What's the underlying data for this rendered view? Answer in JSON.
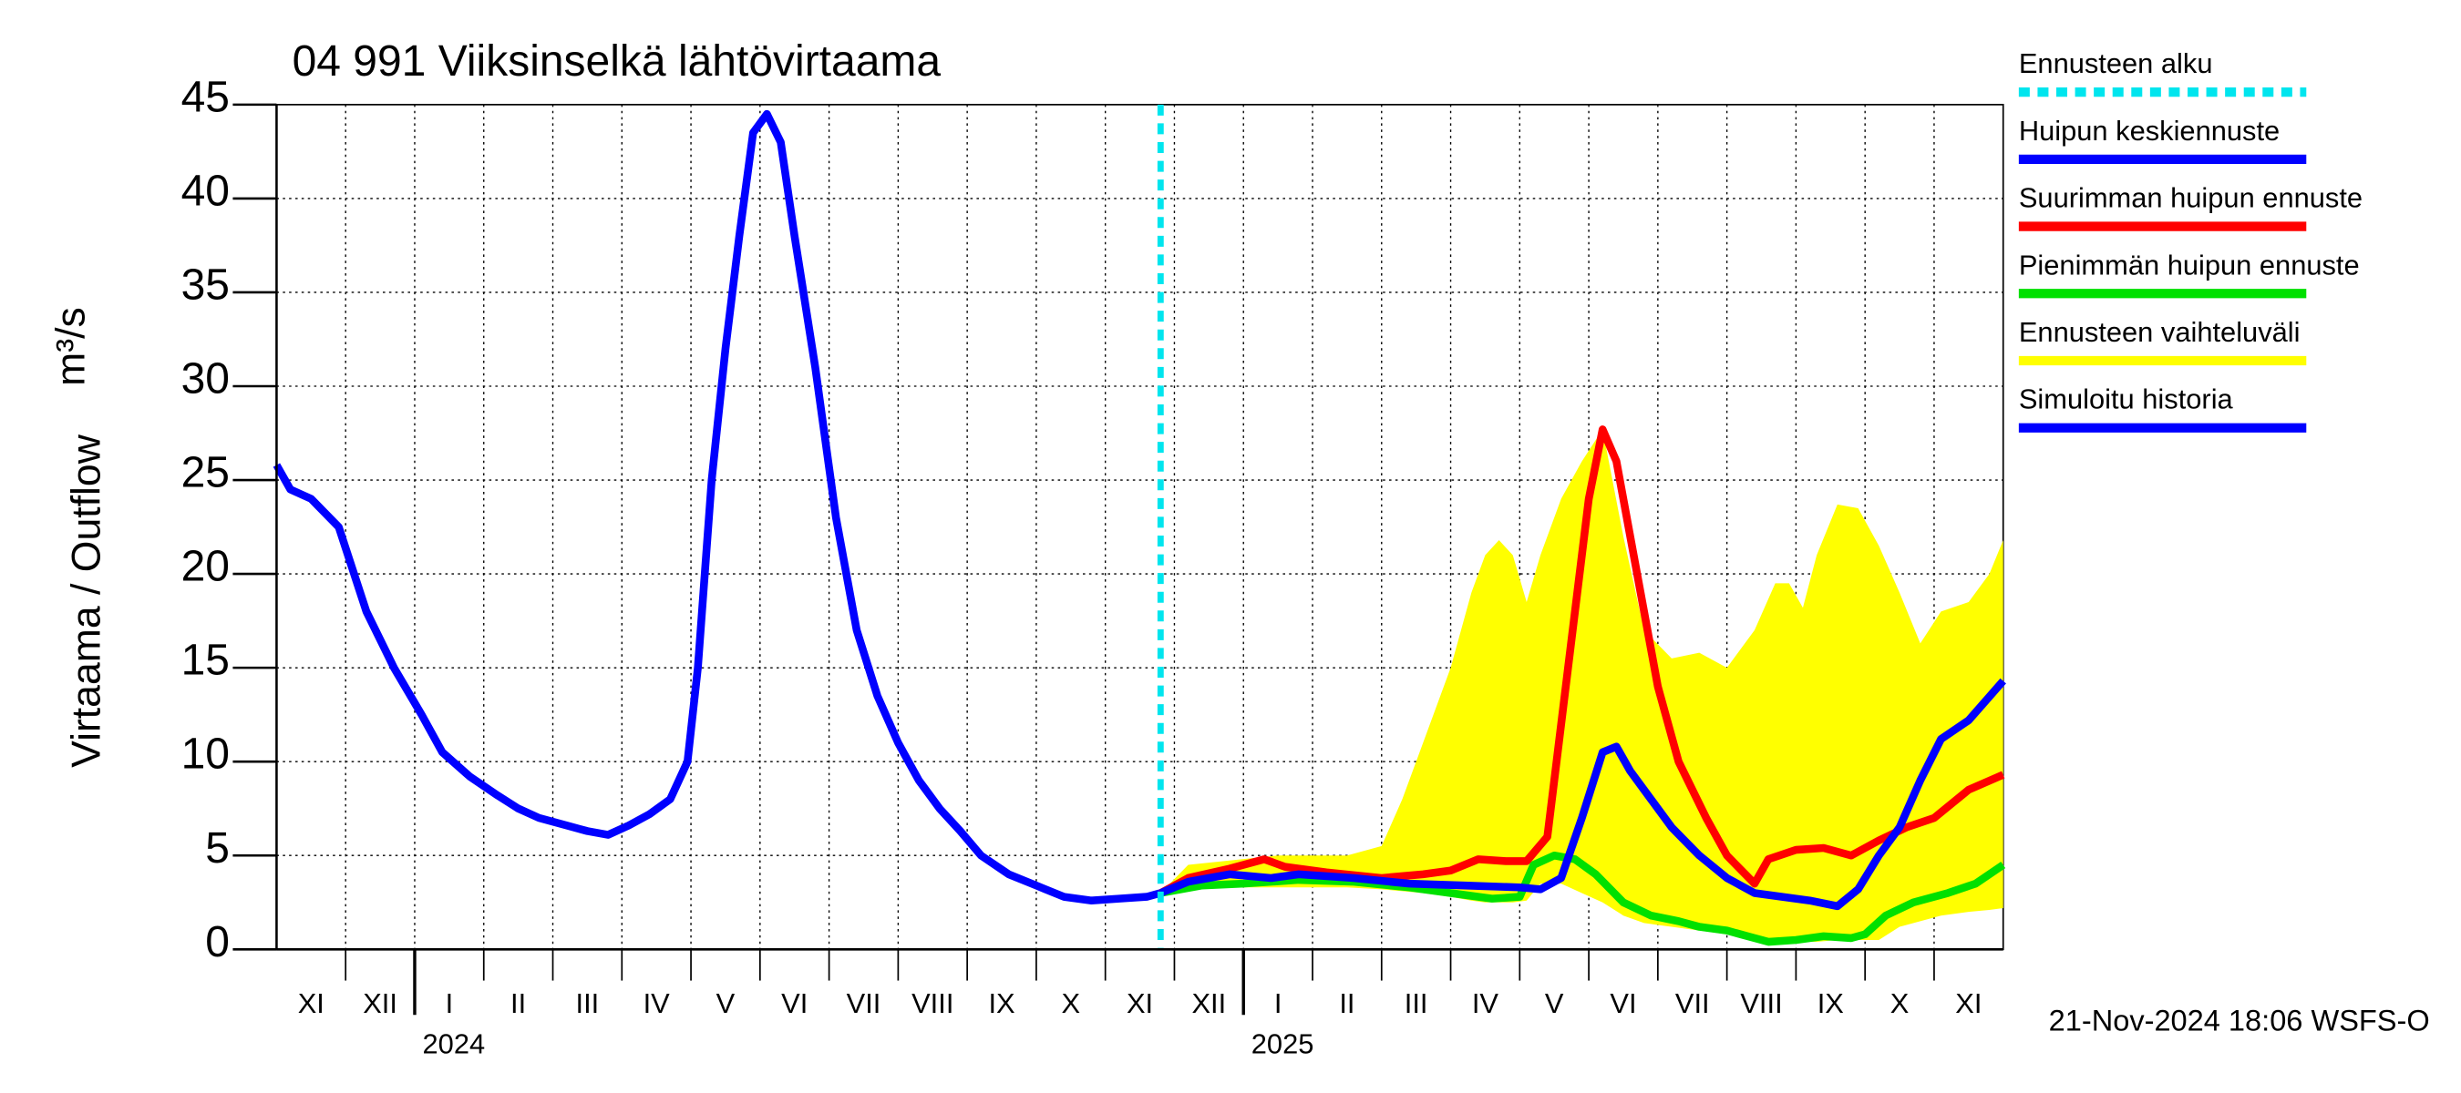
{
  "chart_data": {
    "type": "line",
    "title": "04 991 Viiksinselkä lähtövirtaama",
    "y_label": "Virtaama / Outflow",
    "y_unit": "m³/s",
    "footer": "21-Nov-2024 18:06 WSFS-O",
    "xlim": [
      0,
      25
    ],
    "xticks": [
      1,
      2,
      3,
      4,
      5,
      6,
      7,
      8,
      9,
      10,
      11,
      12,
      13,
      14,
      15,
      16,
      17,
      18,
      19,
      20,
      21,
      22,
      23,
      24
    ],
    "month_labels": [
      "XI",
      "XII",
      "I",
      "II",
      "III",
      "IV",
      "V",
      "VI",
      "VII",
      "VIII",
      "IX",
      "X",
      "XI",
      "XII",
      "I",
      "II",
      "III",
      "IV",
      "V",
      "VI",
      "VII",
      "VIII",
      "IX",
      "X",
      "XI"
    ],
    "year_labels": [
      {
        "value": 2,
        "label": "2024"
      },
      {
        "value": 14,
        "label": "2025"
      }
    ],
    "ylim": [
      0,
      45
    ],
    "yticks": [
      0,
      5,
      10,
      15,
      20,
      25,
      30,
      35,
      40,
      45
    ],
    "grid": true,
    "forecast_start": {
      "name": "Ennusteen alku",
      "x": 12.8,
      "color": "#00e5ee"
    },
    "band": {
      "name": "Ennusteen vaihteluväli",
      "color": "#ffff00",
      "x": [
        12.8,
        13.2,
        14.5,
        15.5,
        16,
        16.3,
        16.6,
        17,
        17.3,
        17.5,
        17.7,
        17.9,
        18.1,
        18.3,
        18.6,
        18.9,
        19.2,
        19.5,
        19.8,
        20.2,
        20.6,
        21,
        21.4,
        21.7,
        21.9,
        22.1,
        22.3,
        22.6,
        22.9,
        23.2,
        23.5,
        23.8,
        24.1,
        24.5,
        24.8,
        25
      ],
      "upper": [
        3,
        4.5,
        5,
        5,
        5.5,
        8,
        11,
        15,
        19,
        21,
        21.8,
        21,
        18.5,
        21,
        24,
        26,
        27.7,
        22,
        17,
        15.5,
        15.8,
        15,
        17,
        19.5,
        19.5,
        18.2,
        21,
        23.7,
        23.5,
        21.5,
        19,
        16.3,
        18,
        18.5,
        20,
        21.8
      ],
      "lower": [
        3,
        3.3,
        3.3,
        3.3,
        3.2,
        3.1,
        3,
        2.8,
        2.6,
        2.5,
        2.5,
        2.5,
        2.6,
        3.5,
        3.5,
        3,
        2.5,
        1.8,
        1.4,
        1.2,
        1,
        0.8,
        0.5,
        0.4,
        0.4,
        0.4,
        0.4,
        0.5,
        0.5,
        0.5,
        1.2,
        1.5,
        1.8,
        2,
        2.1,
        2.2
      ]
    },
    "series": [
      {
        "name": "Huipun keskiennuste",
        "color": "#0000ff",
        "x": [
          12.8,
          13.2,
          13.8,
          14.4,
          14.8,
          15.6,
          16.4,
          17.2,
          18,
          18.3,
          18.6,
          18.9,
          19.2,
          19.4,
          19.6,
          19.9,
          20.2,
          20.6,
          21,
          21.4,
          21.8,
          22.2,
          22.6,
          22.9,
          23.2,
          23.5,
          23.8,
          24.1,
          24.5,
          25
        ],
        "values": [
          3,
          3.6,
          4,
          3.8,
          4,
          3.8,
          3.5,
          3.4,
          3.3,
          3.2,
          3.8,
          7,
          10.5,
          10.8,
          9.5,
          8,
          6.5,
          5,
          3.8,
          3,
          2.8,
          2.6,
          2.3,
          3.2,
          5,
          6.5,
          9,
          11.2,
          12.2,
          14.3
        ]
      },
      {
        "name": "Suurimman huipun ennuste",
        "color": "#ff0000",
        "x": [
          12.8,
          13.2,
          13.8,
          14.3,
          14.6,
          15.2,
          16,
          16.6,
          17,
          17.4,
          17.8,
          18.1,
          18.4,
          18.7,
          19,
          19.2,
          19.4,
          19.7,
          20,
          20.3,
          20.7,
          21,
          21.4,
          21.6,
          22,
          22.4,
          22.8,
          23.2,
          23.6,
          24,
          24.5,
          25
        ],
        "values": [
          3,
          3.8,
          4.3,
          4.8,
          4.4,
          4.1,
          3.8,
          4,
          4.2,
          4.8,
          4.7,
          4.7,
          6,
          15,
          24,
          27.7,
          26,
          20,
          14,
          10,
          7,
          5,
          3.5,
          4.8,
          5.3,
          5.4,
          5,
          5.8,
          6.5,
          7,
          8.5,
          9.3
        ]
      },
      {
        "name": "Pienimmän huipun ennuste",
        "color": "#00e000",
        "x": [
          12.8,
          13.4,
          14,
          14.8,
          15.6,
          16.4,
          17,
          17.6,
          18,
          18.2,
          18.5,
          18.8,
          19.1,
          19.5,
          19.9,
          20.3,
          20.6,
          21,
          21.3,
          21.6,
          22,
          22.4,
          22.8,
          23,
          23.3,
          23.7,
          24.2,
          24.6,
          25
        ],
        "values": [
          3,
          3.4,
          3.5,
          3.7,
          3.6,
          3.3,
          3,
          2.7,
          2.8,
          4.5,
          5,
          4.8,
          4,
          2.5,
          1.8,
          1.5,
          1.2,
          1,
          0.7,
          0.4,
          0.5,
          0.7,
          0.6,
          0.8,
          1.8,
          2.5,
          3,
          3.5,
          4.5
        ]
      },
      {
        "name": "Simuloitu historia",
        "color": "#0000ff",
        "x": [
          0,
          0.2,
          0.5,
          0.9,
          1.3,
          1.7,
          2.1,
          2.4,
          2.8,
          3.2,
          3.5,
          3.8,
          4.2,
          4.5,
          4.8,
          5.1,
          5.4,
          5.7,
          5.95,
          6.1,
          6.3,
          6.5,
          6.7,
          6.9,
          7.1,
          7.3,
          7.5,
          7.8,
          8.1,
          8.4,
          8.7,
          9,
          9.3,
          9.6,
          9.9,
          10.2,
          10.6,
          11,
          11.4,
          11.8,
          12.2,
          12.6,
          12.8
        ],
        "values": [
          25.8,
          24.5,
          24,
          22.5,
          18,
          15,
          12.5,
          10.5,
          9.2,
          8.2,
          7.5,
          7,
          6.6,
          6.3,
          6.1,
          6.6,
          7.2,
          8,
          10,
          15,
          25,
          32,
          38,
          43.5,
          44.5,
          43,
          38,
          31,
          23,
          17,
          13.5,
          11,
          9,
          7.5,
          6.3,
          5,
          4,
          3.4,
          2.8,
          2.6,
          2.7,
          2.8,
          3
        ]
      }
    ]
  }
}
